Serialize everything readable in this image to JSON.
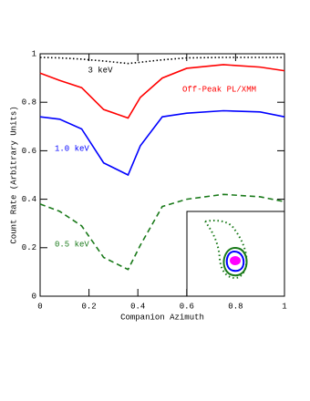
{
  "chart_data": {
    "type": "line",
    "xlabel": "Companion Azimuth",
    "ylabel": "Count Rate (Arbitrary Units)",
    "x": [
      0,
      0.08,
      0.17,
      0.26,
      0.36,
      0.41,
      0.5,
      0.6,
      0.75,
      0.9,
      1
    ],
    "series": [
      {
        "name": "3 keV",
        "color": "#000000",
        "dash": "dotted",
        "values": [
          0.985,
          0.983,
          0.978,
          0.97,
          0.96,
          0.965,
          0.975,
          0.983,
          0.985,
          0.985,
          0.985
        ]
      },
      {
        "name": "Off-Peak PL/XMM",
        "color": "#ff0000",
        "dash": "solid",
        "values": [
          0.92,
          0.89,
          0.86,
          0.77,
          0.735,
          0.82,
          0.9,
          0.94,
          0.955,
          0.945,
          0.93
        ]
      },
      {
        "name": "1.0 keV",
        "color": "#0000ff",
        "dash": "solid",
        "values": [
          0.74,
          0.73,
          0.69,
          0.55,
          0.5,
          0.62,
          0.74,
          0.755,
          0.765,
          0.76,
          0.74
        ]
      },
      {
        "name": "0.5 keV",
        "color": "#1a7a1a",
        "dash": "dashed",
        "values": [
          0.38,
          0.35,
          0.29,
          0.16,
          0.11,
          0.21,
          0.37,
          0.4,
          0.42,
          0.41,
          0.39
        ]
      }
    ],
    "xlim": [
      0,
      1
    ],
    "ylim": [
      0,
      1
    ],
    "xticks": [
      0,
      0.2,
      0.4,
      0.6,
      0.8,
      1
    ],
    "yticks": [
      0,
      0.2,
      0.4,
      0.6,
      0.8,
      1
    ]
  }
}
